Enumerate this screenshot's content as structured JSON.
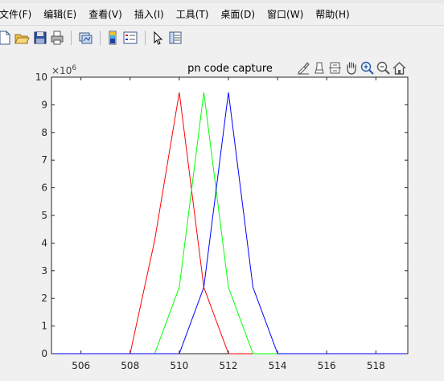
{
  "menubar": {
    "items": [
      {
        "label": "文件(F)"
      },
      {
        "label": "编辑(E)"
      },
      {
        "label": "查看(V)"
      },
      {
        "label": "插入(I)"
      },
      {
        "label": "工具(T)"
      },
      {
        "label": "桌面(D)"
      },
      {
        "label": "窗口(W)"
      },
      {
        "label": "帮助(H)"
      }
    ]
  },
  "toolbar": {
    "icons": [
      "new-file-icon",
      "open-folder-icon",
      "save-icon",
      "print-icon",
      "link-plot-icon",
      "colorbar-icon",
      "legend-icon",
      "pointer-icon",
      "property-inspector-icon"
    ]
  },
  "axes_toolbar": {
    "icons": [
      "brush-icon",
      "data-tips-icon",
      "rotate-icon",
      "pan-icon",
      "zoom-in-icon",
      "zoom-out-icon",
      "home-icon"
    ]
  },
  "chart_data": {
    "type": "line",
    "title": "pn code capture",
    "xlabel": "",
    "ylabel": "",
    "xlim": [
      504.8,
      519.3
    ],
    "ylim": [
      0,
      10
    ],
    "y_multiplier_label": "×10",
    "y_multiplier_exponent": "6",
    "xticks": [
      506,
      508,
      510,
      512,
      514,
      516,
      518
    ],
    "yticks": [
      0,
      1,
      2,
      3,
      4,
      5,
      6,
      7,
      8,
      9,
      10
    ],
    "grid": false,
    "legend": "none",
    "series": [
      {
        "color": "#ff0000",
        "x": [
          504.8,
          508,
          509,
          510,
          511,
          512,
          519.3
        ],
        "y": [
          0,
          0,
          4.1,
          9.45,
          2.4,
          0,
          0
        ]
      },
      {
        "color": "#00ff00",
        "x": [
          504.8,
          509,
          510,
          511,
          512,
          513,
          519.3
        ],
        "y": [
          0,
          0,
          2.4,
          9.45,
          2.4,
          0,
          0
        ]
      },
      {
        "color": "#0000ff",
        "x": [
          504.8,
          510,
          511,
          512,
          513,
          514,
          519.3
        ],
        "y": [
          0,
          0,
          2.4,
          9.45,
          2.4,
          0,
          0
        ]
      }
    ]
  }
}
